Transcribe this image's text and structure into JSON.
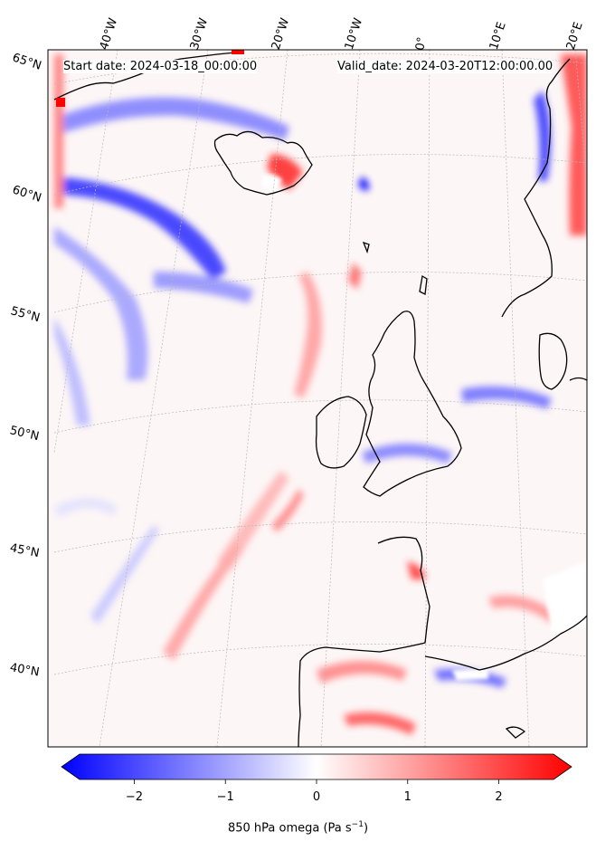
{
  "header": {
    "start_date": "Start date: 2024-03-18_00:00:00",
    "valid_date": "Valid_date: 2024-03-20T12:00:00.00"
  },
  "lon_labels": [
    "40°W",
    "30°W",
    "20°W",
    "10°W",
    "0°",
    "10°E",
    "20°E"
  ],
  "lat_labels": [
    "65°N",
    "60°N",
    "55°N",
    "50°N",
    "45°N",
    "40°N"
  ],
  "colorbar": {
    "label_prefix": "850 hPa omega (Pa s",
    "label_exp": "−1",
    "label_suffix": ")",
    "ticks": [
      "−2",
      "−1",
      "0",
      "1",
      "2"
    ],
    "range": [
      -2.6,
      2.6
    ],
    "cmap_low": "#0000ff",
    "cmap_mid": "#ffffff",
    "cmap_high": "#ff0000"
  },
  "colors": {
    "coast": "#000000",
    "grid": "#b0b0b0",
    "descent": "#ff0000",
    "ascent": "#0000ff"
  }
}
